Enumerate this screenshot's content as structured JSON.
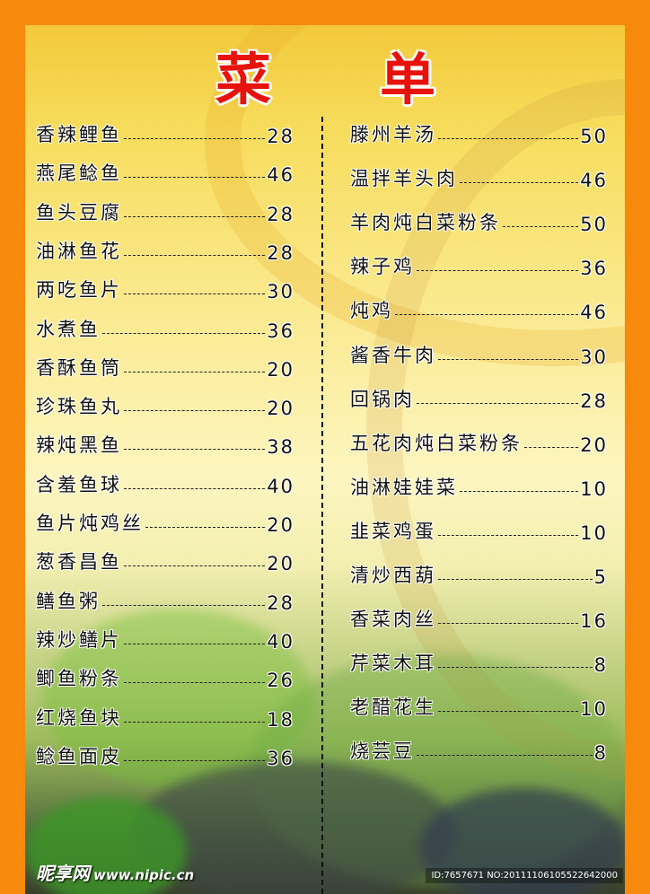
{
  "title": [
    "菜",
    "单"
  ],
  "left_items": [
    {
      "name": "香辣鲤鱼",
      "price": "28"
    },
    {
      "name": "燕尾鲶鱼",
      "price": "46"
    },
    {
      "name": "鱼头豆腐",
      "price": "28"
    },
    {
      "name": "油淋鱼花",
      "price": "28"
    },
    {
      "name": "两吃鱼片",
      "price": "30"
    },
    {
      "name": "水煮鱼",
      "price": "36"
    },
    {
      "name": "香酥鱼筒",
      "price": "20"
    },
    {
      "name": "珍珠鱼丸",
      "price": "20"
    },
    {
      "name": "辣炖黑鱼",
      "price": "38"
    },
    {
      "name": "含羞鱼球",
      "price": "40"
    },
    {
      "name": "鱼片炖鸡丝",
      "price": "20"
    },
    {
      "name": "葱香昌鱼",
      "price": "20"
    },
    {
      "name": "鳝鱼粥",
      "price": "28"
    },
    {
      "name": "辣炒鳝片",
      "price": "40"
    },
    {
      "name": "鲫鱼粉条",
      "price": "26"
    },
    {
      "name": "红烧鱼块",
      "price": "18"
    },
    {
      "name": "鲶鱼面皮",
      "price": "36"
    }
  ],
  "right_items": [
    {
      "name": "滕州羊汤",
      "price": "50"
    },
    {
      "name": "温拌羊头肉",
      "price": "46"
    },
    {
      "name": "羊肉炖白菜粉条",
      "price": "50"
    },
    {
      "name": "辣子鸡",
      "price": "36"
    },
    {
      "name": "炖鸡",
      "price": "46"
    },
    {
      "name": "酱香牛肉",
      "price": "30"
    },
    {
      "name": "回锅肉",
      "price": "28"
    },
    {
      "name": "五花肉炖白菜粉条",
      "price": "20"
    },
    {
      "name": "油淋娃娃菜",
      "price": "10"
    },
    {
      "name": "韭菜鸡蛋",
      "price": "10"
    },
    {
      "name": "清炒西葫",
      "price": "5"
    },
    {
      "name": "香菜肉丝",
      "price": "16"
    },
    {
      "name": "芹菜木耳",
      "price": "8"
    },
    {
      "name": "老醋花生",
      "price": "10"
    },
    {
      "name": "烧芸豆",
      "price": "8"
    }
  ],
  "watermark": {
    "logo": "昵享网",
    "url": "www.nipic.cn",
    "id": "ID:7657671 NO:20111106105522642000"
  },
  "colors": {
    "border": "#f7890c",
    "title": "#e8120c"
  }
}
